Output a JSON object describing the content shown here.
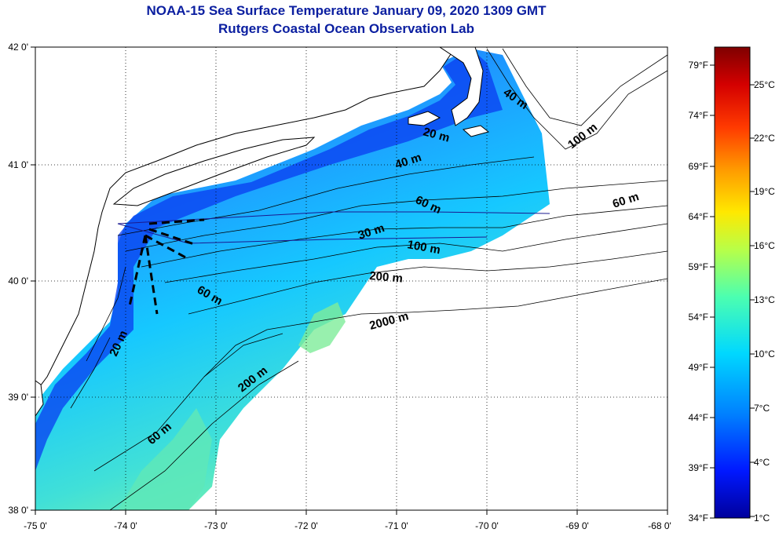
{
  "title": "NOAA-15 Sea Surface Temperature January 09, 2020 1309 GMT",
  "subtitle": "Rutgers Coastal Ocean Observation Lab",
  "lon_ticks": [
    "-75 0'",
    "-74 0'",
    "-73 0'",
    "-72 0'",
    "-71 0'",
    "-70 0'",
    "-69 0'",
    "-68 0'"
  ],
  "lat_ticks": [
    "42 0'",
    "41 0'",
    "40 0'",
    "39 0'",
    "38 0'"
  ],
  "colorbar": {
    "f_labels": [
      "79°F",
      "74°F",
      "69°F",
      "64°F",
      "59°F",
      "54°F",
      "49°F",
      "44°F",
      "39°F",
      "34°F"
    ],
    "c_labels": [
      "25°C",
      "22°C",
      "19°C",
      "16°C",
      "13°C",
      "10°C",
      "7°C",
      "4°C",
      "1°C"
    ],
    "colors": [
      "#7f0000",
      "#d40000",
      "#ff3a00",
      "#ff9a00",
      "#ffe800",
      "#b8ff48",
      "#4cffb0",
      "#00d8ff",
      "#0080ff",
      "#0018ff",
      "#00009c"
    ]
  },
  "contour_labels": [
    "40 m",
    "100 m",
    "20 m",
    "40 m",
    "60 m",
    "60 m",
    "30 m",
    "100 m",
    "200 m",
    "60 m",
    "2000 m",
    "20 m",
    "200 m",
    "60 m"
  ],
  "colors": {
    "title": "#0a1ea0",
    "land": "#ffffff",
    "coastline": "#000000"
  }
}
